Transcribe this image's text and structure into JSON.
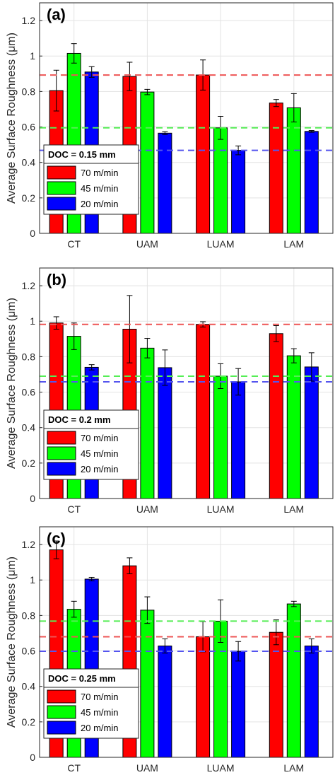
{
  "ylabel": "Average Surface Roughness (μm)",
  "colors": {
    "70": "#ff0000",
    "45": "#00ff00",
    "20": "#0000ff",
    "ref70": "#ee5555",
    "ref45": "#55ee55",
    "ref20": "#5555ee"
  },
  "chart_data": [
    {
      "type": "bar",
      "panel_label": "(a)",
      "legend_title": "DOC = 0.15 mm",
      "categories": [
        "CT",
        "UAM",
        "LUAM",
        "LAM"
      ],
      "ylabel": "Average Surface Roughness (μm)",
      "ylim": [
        0,
        1.3
      ],
      "yticks": [
        "0",
        "0.2",
        "0.4",
        "0.6",
        "0.8",
        "1",
        "1.2"
      ],
      "grid": true,
      "legend_position": "lower-left",
      "series": [
        {
          "name": "70 m/min",
          "color": "#ff0000",
          "values": [
            0.805,
            0.885,
            0.893,
            0.735
          ],
          "errors": [
            0.115,
            0.08,
            0.085,
            0.02
          ]
        },
        {
          "name": "45 m/min",
          "color": "#00ff00",
          "values": [
            1.015,
            0.797,
            0.595,
            0.708
          ],
          "errors": [
            0.055,
            0.015,
            0.065,
            0.08
          ]
        },
        {
          "name": "20 m/min",
          "color": "#0000ff",
          "values": [
            0.91,
            0.565,
            0.468,
            0.575
          ],
          "errors": [
            0.03,
            0.008,
            0.025,
            0.005
          ]
        }
      ],
      "reference_lines": [
        {
          "value": 0.893,
          "color": "#ee5555"
        },
        {
          "value": 0.595,
          "color": "#55ee55"
        },
        {
          "value": 0.468,
          "color": "#5555ee"
        }
      ]
    },
    {
      "type": "bar",
      "panel_label": "(b)",
      "legend_title": "DOC = 0.2 mm",
      "categories": [
        "CT",
        "UAM",
        "LUAM",
        "LAM"
      ],
      "ylabel": "Average Surface Roughness (μm)",
      "ylim": [
        0,
        1.3
      ],
      "yticks": [
        "0",
        "0.2",
        "0.4",
        "0.6",
        "0.8",
        "1",
        "1.2"
      ],
      "grid": true,
      "legend_position": "lower-left",
      "series": [
        {
          "name": "70 m/min",
          "color": "#ff0000",
          "values": [
            0.99,
            0.955,
            0.982,
            0.93
          ],
          "errors": [
            0.035,
            0.19,
            0.015,
            0.045
          ]
        },
        {
          "name": "45 m/min",
          "color": "#00ff00",
          "values": [
            0.915,
            0.848,
            0.69,
            0.805
          ],
          "errors": [
            0.075,
            0.055,
            0.07,
            0.04
          ]
        },
        {
          "name": "20 m/min",
          "color": "#0000ff",
          "values": [
            0.74,
            0.738,
            0.658,
            0.742
          ],
          "errors": [
            0.015,
            0.1,
            0.075,
            0.08
          ]
        }
      ],
      "reference_lines": [
        {
          "value": 0.982,
          "color": "#ee5555"
        },
        {
          "value": 0.69,
          "color": "#55ee55"
        },
        {
          "value": 0.658,
          "color": "#5555ee"
        }
      ]
    },
    {
      "type": "bar",
      "panel_label": "(c)",
      "legend_title": "DOC = 0.25 mm",
      "categories": [
        "CT",
        "UAM",
        "LUAM",
        "LAM"
      ],
      "ylabel": "Average Surface Roughness (μm)",
      "ylim": [
        0,
        1.3
      ],
      "yticks": [
        "0",
        "0.2",
        "0.4",
        "0.6",
        "0.8",
        "1",
        "1.2"
      ],
      "grid": true,
      "legend_position": "lower-left",
      "series": [
        {
          "name": "70 m/min",
          "color": "#ff0000",
          "values": [
            1.17,
            1.08,
            0.68,
            0.705
          ],
          "errors": [
            0.05,
            0.045,
            0.085,
            0.07
          ]
        },
        {
          "name": "45 m/min",
          "color": "#00ff00",
          "values": [
            0.835,
            0.83,
            0.768,
            0.865
          ],
          "errors": [
            0.045,
            0.075,
            0.12,
            0.015
          ]
        },
        {
          "name": "20 m/min",
          "color": "#0000ff",
          "values": [
            1.005,
            0.628,
            0.598,
            0.628
          ],
          "errors": [
            0.01,
            0.04,
            0.055,
            0.04
          ]
        }
      ],
      "reference_lines": [
        {
          "value": 0.768,
          "color": "#55ee55"
        },
        {
          "value": 0.68,
          "color": "#ee5555"
        },
        {
          "value": 0.598,
          "color": "#5555ee"
        }
      ]
    }
  ]
}
